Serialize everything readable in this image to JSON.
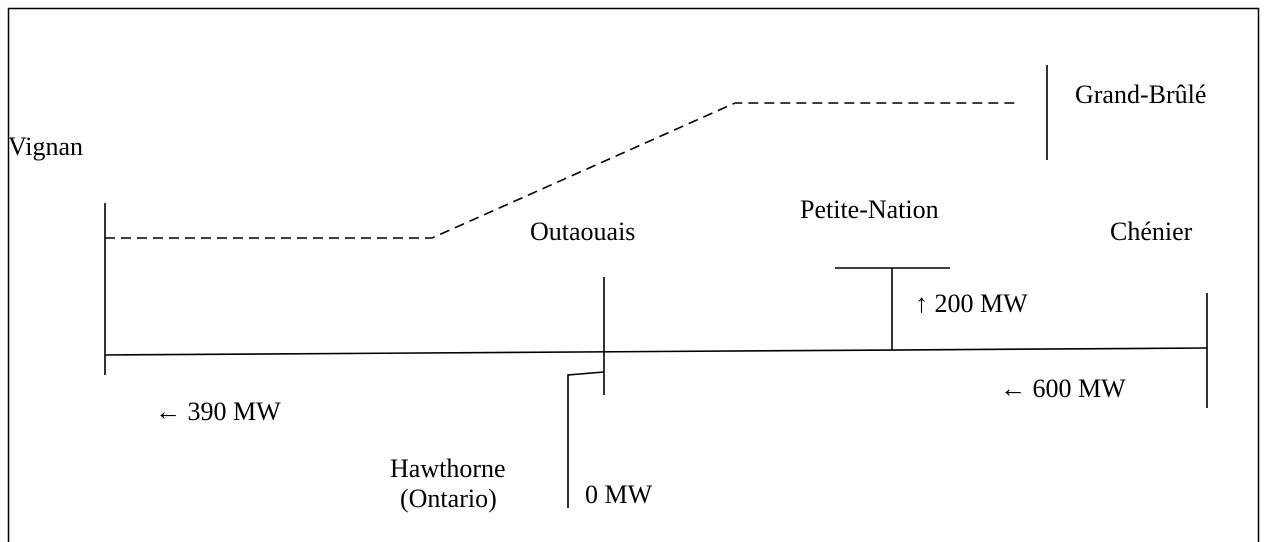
{
  "nodes": [
    {
      "label": "Vignan"
    },
    {
      "label": "Grand-Brûlé"
    },
    {
      "label": "Outaouais"
    },
    {
      "label": "Petite-Nation"
    },
    {
      "label": "Chénier"
    },
    {
      "label": "Hawthorne",
      "sublabel": "(Ontario)"
    }
  ],
  "flows": [
    {
      "label": "← 390 MW"
    },
    {
      "label": "↑ 200 MW"
    },
    {
      "label": "← 600 MW"
    },
    {
      "label": "0 MW"
    }
  ]
}
